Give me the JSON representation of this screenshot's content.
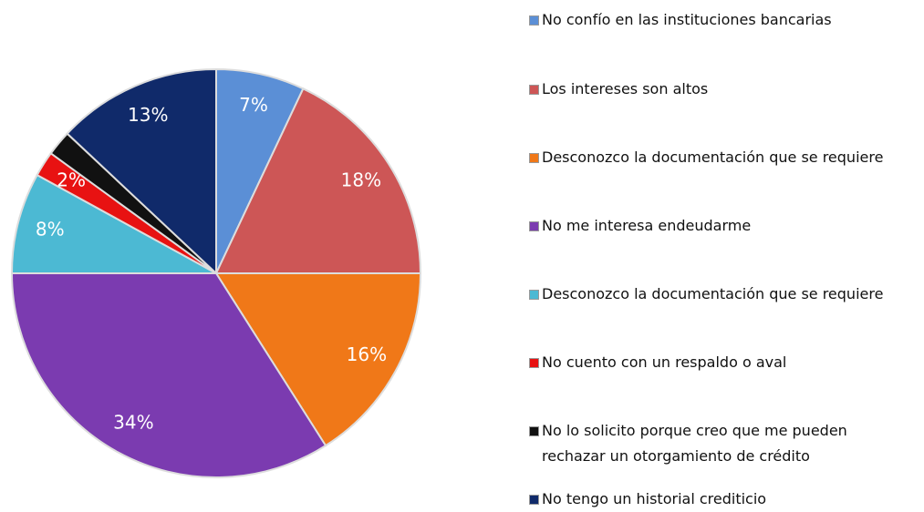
{
  "chart_data": {
    "type": "pie",
    "categories": [
      "No confío en las instituciones bancarias",
      "Los intereses son altos",
      "Desconozco la documentación que se requiere",
      "No me interesa endeudarme",
      "Desconozco la documentación que se requiere",
      "No cuento con un respaldo o aval",
      "No lo solicito porque creo que me pueden rechazar un otorgamiento de crédito",
      "No tengo un historial crediticio"
    ],
    "values": [
      7,
      18,
      16,
      34,
      8,
      2,
      2,
      13
    ],
    "value_labels": [
      "7%",
      "18%",
      "16%",
      "34%",
      "8%",
      "2%",
      null,
      "13%"
    ],
    "colors": [
      "#5b8fd6",
      "#cd5656",
      "#f07818",
      "#7b3bb0",
      "#4cb9d3",
      "#e81212",
      "#111111",
      "#102a6a"
    ],
    "legend": "right"
  }
}
